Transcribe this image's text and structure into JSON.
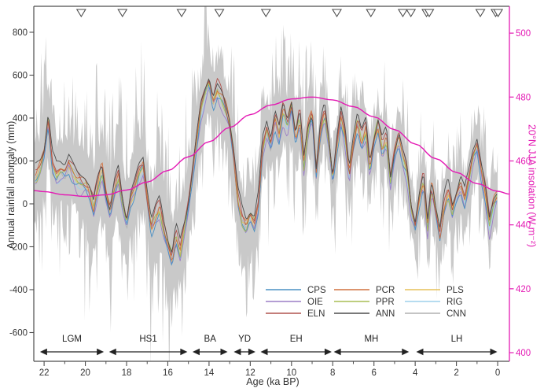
{
  "chart_data": {
    "type": "line",
    "title": "",
    "xlabel": "Age (ka BP)",
    "ylabel_left": "Annual rainfall anomaly (mm)",
    "ylabel_right": "20°N JJA insolation (W m⁻²)",
    "background": "#ffffff",
    "frame_color": "#4d4d4d",
    "axes": {
      "x": {
        "left_value": 22.5,
        "right_value": -0.57,
        "major_ticks": [
          22,
          20,
          18,
          16,
          14,
          12,
          10,
          8,
          6,
          4,
          2,
          0
        ],
        "minor_ticks": [
          21,
          19,
          17,
          15,
          13,
          11,
          9,
          7,
          5,
          3,
          1
        ]
      },
      "y_left": {
        "range": [
          -734,
          921
        ],
        "ticks": [
          -600,
          -400,
          -200,
          0,
          200,
          400,
          600,
          800
        ]
      },
      "y_right": {
        "range": [
          397.3,
          508.4
        ],
        "ticks": [
          400,
          420,
          440,
          460,
          480,
          500
        ],
        "color": "#e41ab4"
      }
    },
    "event_marker_ages_ka": [
      20.2,
      18.2,
      15.33,
      13.5,
      11.24,
      7.8,
      6.15,
      4.6,
      4.21,
      3.45,
      3.32,
      0.84,
      0.1,
      -0.02
    ],
    "periods": [
      {
        "label": "LGM",
        "from": 22.2,
        "to": 19.1
      },
      {
        "label": "HS1",
        "from": 18.85,
        "to": 15.05
      },
      {
        "label": "BA",
        "from": 14.8,
        "to": 13.1
      },
      {
        "label": "YD",
        "from": 12.8,
        "to": 11.75
      },
      {
        "label": "EH",
        "from": 11.5,
        "to": 8.05
      },
      {
        "label": "MH",
        "from": 7.95,
        "to": 4.3
      },
      {
        "label": "LH",
        "from": 3.95,
        "to": 0.02
      }
    ],
    "ensemble_mean": {
      "age_start_ka": 22.4,
      "age_step_ka": -0.2,
      "anomaly_mm": [
        120,
        160,
        230,
        390,
        180,
        130,
        150,
        145,
        190,
        150,
        110,
        95,
        90,
        60,
        -20,
        80,
        160,
        40,
        -40,
        60,
        125,
        0,
        -95,
        20,
        70,
        140,
        170,
        20,
        -115,
        -60,
        -20,
        -120,
        -190,
        -260,
        -150,
        -225,
        -115,
        -5,
        143,
        290,
        437,
        510,
        565,
        473,
        528,
        492,
        437,
        363,
        216,
        15,
        -77,
        -114,
        -59,
        -95,
        -4,
        253,
        345,
        272,
        400,
        327,
        437,
        363,
        455,
        308,
        400,
        180,
        345,
        418,
        143,
        327,
        418,
        290,
        106,
        272,
        400,
        308,
        125,
        272,
        382,
        290,
        345,
        161,
        290,
        363,
        253,
        308,
        106,
        235,
        308,
        216,
        150,
        -30,
        -110,
        20,
        106,
        -114,
        70,
        -40,
        -150,
        -22,
        51,
        -40,
        33,
        88,
        15,
        106,
        216,
        272,
        161,
        51,
        -95,
        -4,
        40
      ]
    },
    "uncertainty_band": {
      "color": "#c9c9c9",
      "halfwidth_breakpoints": [
        [
          22.5,
          240
        ],
        [
          20.5,
          245
        ],
        [
          19.6,
          300
        ],
        [
          18.6,
          265
        ],
        [
          17,
          285
        ],
        [
          16,
          295
        ],
        [
          15.3,
          265
        ],
        [
          15,
          305
        ],
        [
          14.4,
          235
        ],
        [
          13.4,
          225
        ],
        [
          12.8,
          245
        ],
        [
          12,
          255
        ],
        [
          11.5,
          225
        ],
        [
          10,
          215
        ],
        [
          9,
          205
        ],
        [
          8,
          195
        ],
        [
          7,
          185
        ],
        [
          6,
          178
        ],
        [
          5,
          172
        ],
        [
          4.2,
          180
        ],
        [
          3.5,
          190
        ],
        [
          2.8,
          182
        ],
        [
          2,
          168
        ],
        [
          1,
          162
        ],
        [
          0,
          178
        ]
      ]
    },
    "series": [
      {
        "name": "CPS",
        "color": "#4a90c4",
        "bundle_offset_mm": -28
      },
      {
        "name": "OIE",
        "color": "#9b7ec6",
        "bundle_offset_mm": -40
      },
      {
        "name": "ELN",
        "color": "#b0534e",
        "bundle_offset_mm": 32
      },
      {
        "name": "PCR",
        "color": "#d0703f",
        "bundle_offset_mm": 16
      },
      {
        "name": "PPR",
        "color": "#a9be55",
        "bundle_offset_mm": 4
      },
      {
        "name": "ANN",
        "color": "#4d4d4d",
        "bundle_offset_mm": 50
      },
      {
        "name": "PLS",
        "color": "#e5c158",
        "bundle_offset_mm": -10
      },
      {
        "name": "RIG",
        "color": "#9dd0ec",
        "bundle_offset_mm": -18
      },
      {
        "name": "CNN",
        "color": "#b1b1b1",
        "bundle_offset_mm": -2
      }
    ],
    "insolation_curve": {
      "color": "#e41ab4",
      "ages_ka": [
        22.5,
        22,
        21,
        20,
        19,
        18,
        17,
        16,
        15,
        14,
        13,
        12,
        11,
        10,
        9,
        8,
        7,
        6,
        5,
        4,
        3,
        2,
        1,
        0,
        -0.6
      ],
      "values_wm2": [
        450.7,
        450.4,
        449.4,
        448.9,
        449.4,
        450.9,
        453.4,
        457.0,
        461.3,
        466.0,
        470.5,
        474.5,
        477.5,
        479.4,
        480.0,
        479.1,
        477.0,
        473.8,
        469.8,
        465.3,
        460.7,
        456.4,
        452.9,
        450.5,
        449.6
      ]
    }
  }
}
